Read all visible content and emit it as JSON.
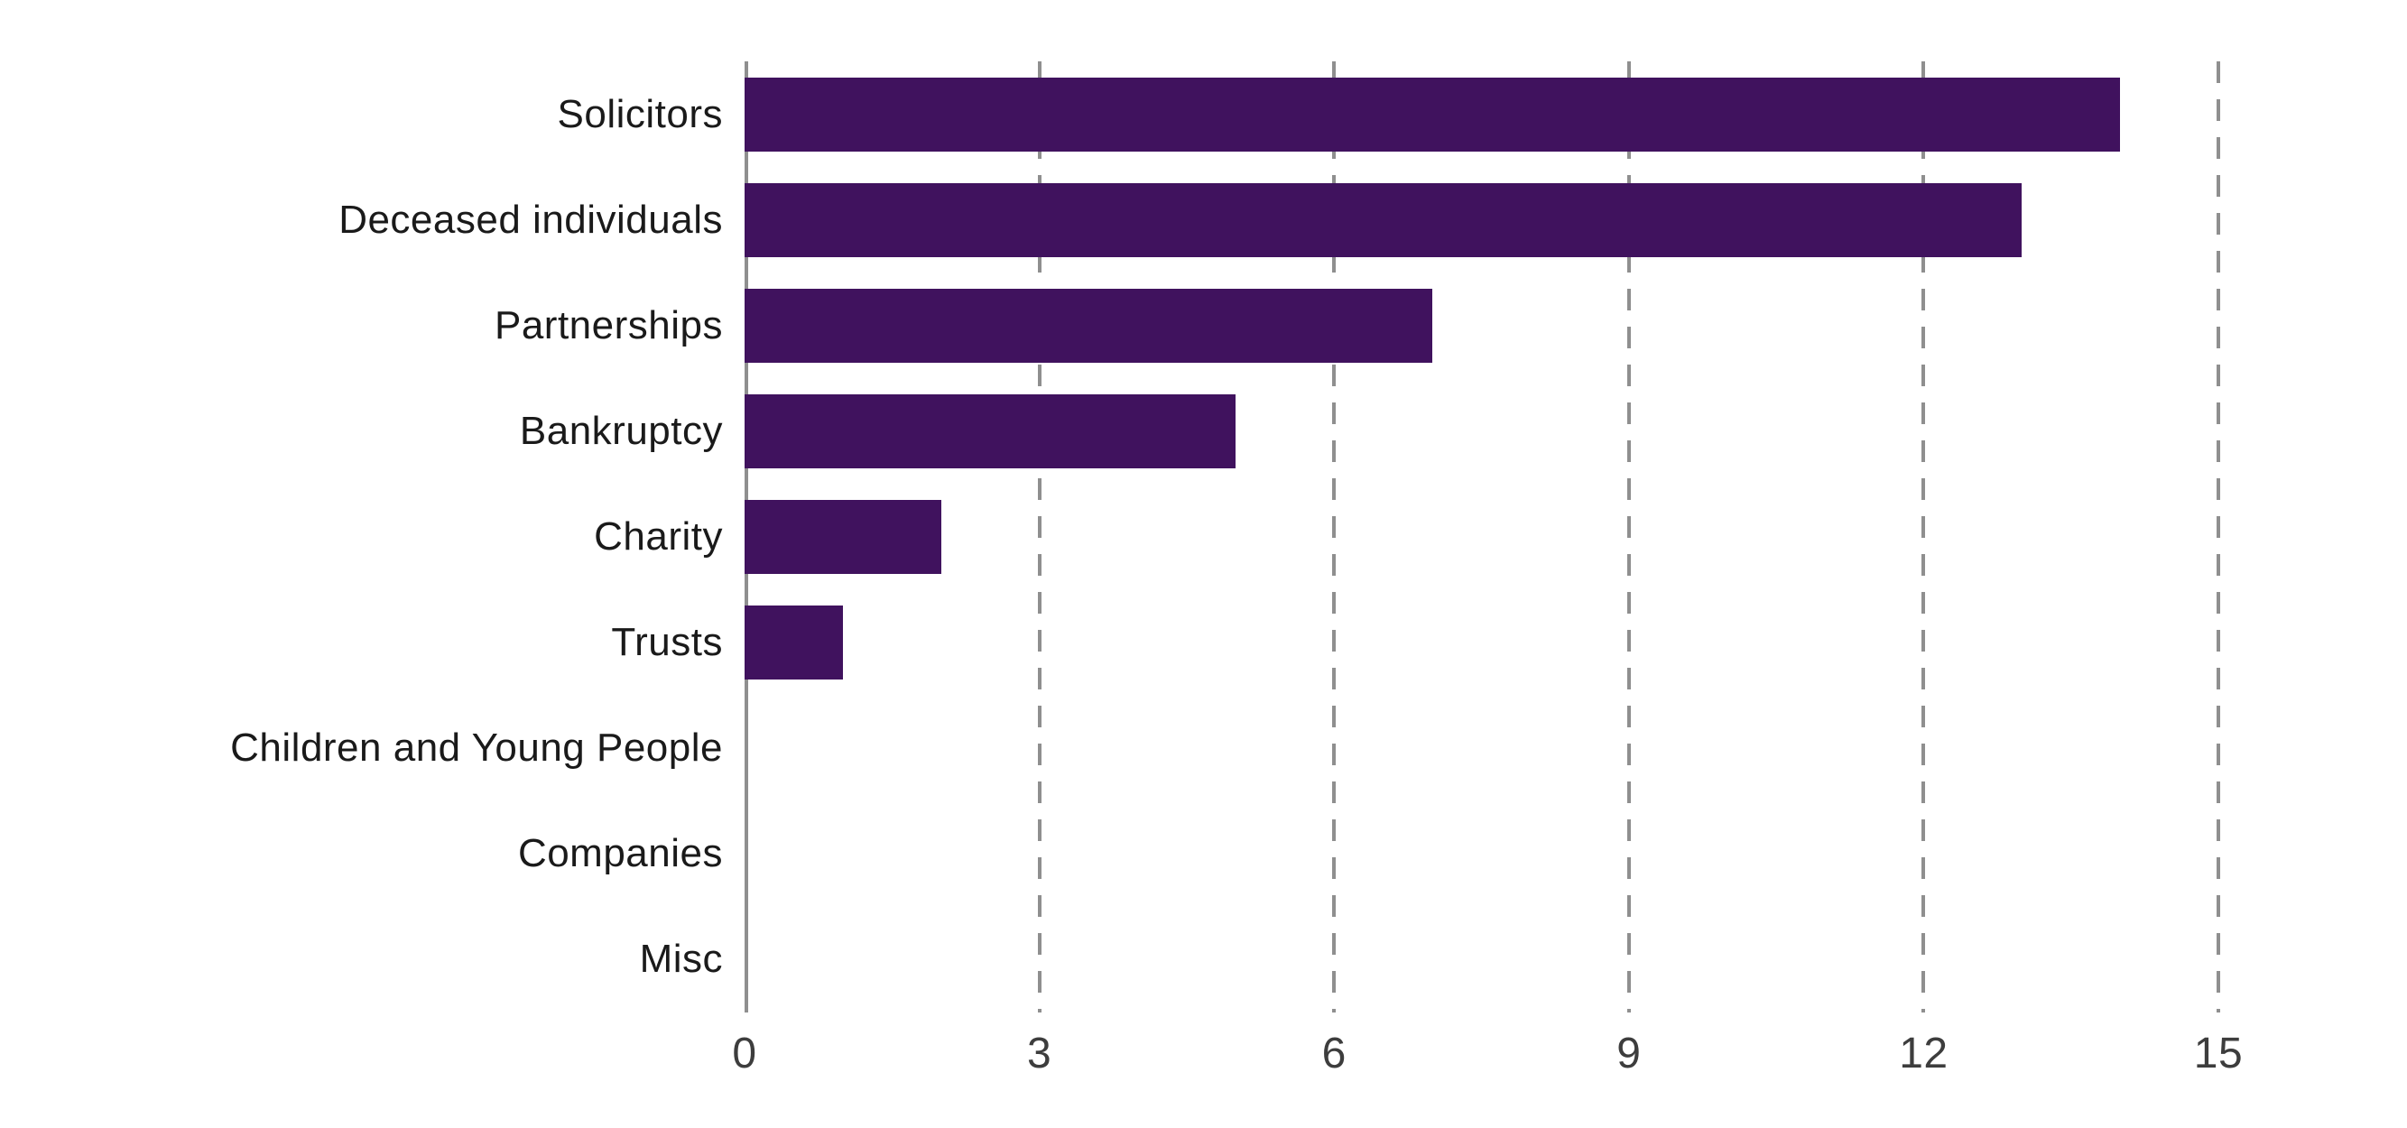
{
  "chart_data": {
    "type": "bar",
    "orientation": "horizontal",
    "title": "",
    "xlabel": "",
    "ylabel": "",
    "categories": [
      "Solicitors",
      "Deceased individuals",
      "Partnerships",
      "Bankruptcy",
      "Charity",
      "Trusts",
      "Children and Young People",
      "Companies",
      "Misc"
    ],
    "values": [
      14,
      13,
      7,
      5,
      2,
      1,
      0,
      0,
      0
    ],
    "xlim": [
      0,
      15
    ],
    "xticks": [
      0,
      3,
      6,
      9,
      12,
      15
    ],
    "grid": "vertical dashed gridlines at each x tick",
    "legend": "none",
    "bar_color": "#40125e",
    "axis_color": "#8f8f8f",
    "gridline_color": "#8f8f8f",
    "category_label_color": "#1a1a1a",
    "tick_label_color": "#3d3d3d",
    "background_color": "#ffffff"
  }
}
